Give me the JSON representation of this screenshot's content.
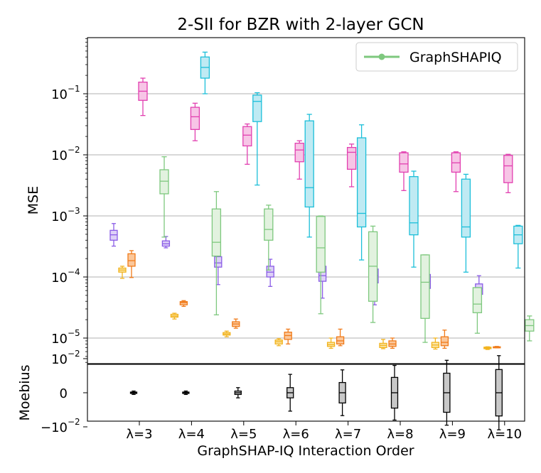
{
  "chart_data": [
    {
      "type": "box",
      "title": "2-SII for BZR with 2-layer GCN",
      "ylabel": "MSE",
      "yscale": "log",
      "ylim": [
        2.5e-06,
        1.0
      ],
      "y_ticks": [
        {
          "value": 0.1,
          "base": "10",
          "exp": "−1"
        },
        {
          "value": 0.01,
          "base": "10",
          "exp": "−2"
        },
        {
          "value": 0.001,
          "base": "10",
          "exp": "−3"
        },
        {
          "value": 0.0001,
          "base": "10",
          "exp": "−4"
        },
        {
          "value": 1e-05,
          "base": "10",
          "exp": "−5"
        }
      ],
      "grid": "y",
      "legend": {
        "position": "top-right",
        "entries": [
          {
            "label": "GraphSHAPIQ",
            "color": "#7ec87e"
          }
        ]
      },
      "categories": [
        "λ=3",
        "λ=4",
        "λ=5",
        "λ=6",
        "λ=7",
        "λ=8",
        "λ=9",
        "λ=10"
      ],
      "series": [
        {
          "name": "purple",
          "stroke": "#8a5ce6",
          "fill": "#ddd0f7",
          "boxes": [
            {
              "lo": 0.00032,
              "q1": 0.0004,
              "med": 0.00049,
              "q3": 0.00058,
              "hi": 0.00075
            },
            {
              "lo": 0.0003,
              "q1": 0.00032,
              "med": 0.00035,
              "q3": 0.00039,
              "hi": 0.00046
            },
            {
              "lo": 7.5e-05,
              "q1": 0.000145,
              "med": 0.00017,
              "q3": 0.000215,
              "hi": 0.00022
            },
            {
              "lo": 7e-05,
              "q1": 0.0001,
              "med": 0.00012,
              "q3": 0.00015,
              "hi": 0.000195
            },
            {
              "lo": 4.5e-05,
              "q1": 8.5e-05,
              "med": 0.000105,
              "q3": 0.00015,
              "hi": 0.0002
            },
            {
              "lo": 3.5e-05,
              "q1": 8e-05,
              "med": 0.000105,
              "q3": 0.000135,
              "hi": 0.00017
            },
            {
              "lo": 4.5e-05,
              "q1": 6.5e-05,
              "med": 8.5e-05,
              "q3": 0.00011,
              "hi": 0.000135
            },
            {
              "lo": 4e-05,
              "q1": 5.2e-05,
              "med": 6.5e-05,
              "q3": 7.7e-05,
              "hi": 0.000105
            }
          ]
        },
        {
          "name": "yellow",
          "stroke": "#f2b31e",
          "fill": "#fbe6a8",
          "boxes": [
            {
              "lo": 9.5e-05,
              "q1": 0.00012,
              "med": 0.00013,
              "q3": 0.00014,
              "hi": 0.00015
            },
            {
              "lo": 2.05e-05,
              "q1": 2.2e-05,
              "med": 2.3e-05,
              "q3": 2.45e-05,
              "hi": 2.55e-05
            },
            {
              "lo": 1.05e-05,
              "q1": 1.12e-05,
              "med": 1.17e-05,
              "q3": 1.23e-05,
              "hi": 1.3e-05
            },
            {
              "lo": 7.5e-06,
              "q1": 8e-06,
              "med": 8.7e-06,
              "q3": 9.3e-06,
              "hi": 9.8e-06
            },
            {
              "lo": 6.8e-06,
              "q1": 7.3e-06,
              "med": 7.8e-06,
              "q3": 8.5e-06,
              "hi": 1e-05
            },
            {
              "lo": 6.7e-06,
              "q1": 7e-06,
              "med": 7.6e-06,
              "q3": 8.2e-06,
              "hi": 9.5e-06
            },
            {
              "lo": 6.6e-06,
              "q1": 7e-06,
              "med": 7.7e-06,
              "q3": 8.5e-06,
              "hi": 1e-05
            },
            {
              "lo": 6.5e-06,
              "q1": 6.7e-06,
              "med": 6.9e-06,
              "q3": 7.1e-06,
              "hi": 7.2e-06
            }
          ]
        },
        {
          "name": "orange",
          "stroke": "#f07b1a",
          "fill": "#fbc79a",
          "boxes": [
            {
              "lo": 9.8e-05,
              "q1": 0.00015,
              "med": 0.000185,
              "q3": 0.00024,
              "hi": 0.00027
            },
            {
              "lo": 3.3e-05,
              "q1": 3.5e-05,
              "med": 3.8e-05,
              "q3": 3.95e-05,
              "hi": 4.1e-05
            },
            {
              "lo": 1.45e-05,
              "q1": 1.55e-05,
              "med": 1.7e-05,
              "q3": 1.85e-05,
              "hi": 2.05e-05
            },
            {
              "lo": 8e-06,
              "q1": 9.5e-06,
              "med": 1.1e-05,
              "q3": 1.25e-05,
              "hi": 1.4e-05
            },
            {
              "lo": 7.5e-06,
              "q1": 8e-06,
              "med": 9e-06,
              "q3": 1.05e-05,
              "hi": 1.4e-05
            },
            {
              "lo": 6.8e-06,
              "q1": 7.3e-06,
              "med": 8e-06,
              "q3": 9e-06,
              "hi": 1e-05
            },
            {
              "lo": 6.8e-06,
              "q1": 7.5e-06,
              "med": 8.5e-06,
              "q3": 1.05e-05,
              "hi": 1.35e-05
            },
            {
              "lo": 6.9e-06,
              "q1": 7e-06,
              "med": 7.1e-06,
              "q3": 7.2e-06,
              "hi": 7.3e-06
            }
          ]
        },
        {
          "name": "pink",
          "stroke": "#e23fb0",
          "fill": "#f7c5e6",
          "boxes": [
            {
              "lo": 0.044,
              "q1": 0.078,
              "med": 0.11,
              "q3": 0.155,
              "hi": 0.18
            },
            {
              "lo": 0.017,
              "q1": 0.026,
              "med": 0.042,
              "q3": 0.06,
              "hi": 0.07
            },
            {
              "lo": 0.007,
              "q1": 0.014,
              "med": 0.021,
              "q3": 0.029,
              "hi": 0.032
            },
            {
              "lo": 0.004,
              "q1": 0.0077,
              "med": 0.012,
              "q3": 0.0155,
              "hi": 0.017
            },
            {
              "lo": 0.003,
              "q1": 0.0058,
              "med": 0.011,
              "q3": 0.0132,
              "hi": 0.015
            },
            {
              "lo": 0.0026,
              "q1": 0.0052,
              "med": 0.0071,
              "q3": 0.0108,
              "hi": 0.0112
            },
            {
              "lo": 0.0025,
              "q1": 0.0052,
              "med": 0.0074,
              "q3": 0.0108,
              "hi": 0.0112
            },
            {
              "lo": 0.0024,
              "q1": 0.0035,
              "med": 0.0066,
              "q3": 0.0098,
              "hi": 0.0102
            }
          ]
        },
        {
          "name": "cyan",
          "stroke": "#1cbfd9",
          "fill": "#bfeaf3",
          "boxes": [
            {
              "lo": null,
              "q1": null,
              "med": null,
              "q3": null,
              "hi": null
            },
            {
              "lo": 0.1,
              "q1": 0.18,
              "med": 0.27,
              "q3": 0.4,
              "hi": 0.48
            },
            {
              "lo": 0.0032,
              "q1": 0.035,
              "med": 0.075,
              "q3": 0.095,
              "hi": 0.104
            },
            {
              "lo": 0.00045,
              "q1": 0.0014,
              "med": 0.0029,
              "q3": 0.036,
              "hi": 0.046
            },
            {
              "lo": 0.00019,
              "q1": 0.00066,
              "med": 0.0011,
              "q3": 0.019,
              "hi": 0.031
            },
            {
              "lo": 0.000145,
              "q1": 0.00049,
              "med": 0.00077,
              "q3": 0.0044,
              "hi": 0.0054
            },
            {
              "lo": 0.00012,
              "q1": 0.00045,
              "med": 0.00066,
              "q3": 0.004,
              "hi": 0.0048
            },
            {
              "lo": 0.00014,
              "q1": 0.00035,
              "med": 0.00049,
              "q3": 0.00068,
              "hi": 0.0007
            }
          ]
        },
        {
          "name": "GraphSHAPIQ",
          "stroke": "#7ec87e",
          "fill": "#e2f2df",
          "boxes": [
            {
              "lo": 0.00045,
              "q1": 0.0023,
              "med": 0.0037,
              "q3": 0.0057,
              "hi": 0.0093
            },
            {
              "lo": 2.4e-05,
              "q1": 0.00022,
              "med": 0.00037,
              "q3": 0.0013,
              "hi": 0.0025
            },
            {
              "lo": 0.00013,
              "q1": 0.0004,
              "med": 0.0006,
              "q3": 0.0013,
              "hi": 0.0015
            },
            {
              "lo": 2.5e-05,
              "q1": 0.00012,
              "med": 0.0003,
              "q3": 0.00098,
              "hi": 0.001
            },
            {
              "lo": 1.8e-05,
              "q1": 4e-05,
              "med": 0.00015,
              "q3": 0.00055,
              "hi": 0.00068
            },
            {
              "lo": 8.5e-06,
              "q1": 2.1e-05,
              "med": 8.2e-05,
              "q3": 0.00023,
              "hi": 0.00023
            },
            {
              "lo": 1.2e-05,
              "q1": 2.6e-05,
              "med": 3.6e-05,
              "q3": 6.7e-05,
              "hi": 6.7e-05
            },
            {
              "lo": 9e-06,
              "q1": 1.3e-05,
              "med": 1.6e-05,
              "q3": 2e-05,
              "hi": 2.3e-05
            }
          ]
        }
      ]
    },
    {
      "type": "box",
      "ylabel": "Moebius",
      "yscale": "symlog",
      "y_ticks": [
        {
          "value": 0.01,
          "base": "10",
          "exp": "−2",
          "prefix": ""
        },
        {
          "value": 0,
          "base": "0",
          "exp": "",
          "prefix": ""
        },
        {
          "value": -0.01,
          "base": "10",
          "exp": "−2",
          "prefix": "−"
        }
      ],
      "xlabel": "GraphSHAP-IQ Interaction Order",
      "categories": [
        "λ=3",
        "λ=4",
        "λ=5",
        "λ=6",
        "λ=7",
        "λ=8",
        "λ=9",
        "λ=10"
      ],
      "series": [
        {
          "name": "Moebius",
          "stroke": "#000000",
          "fill": "#c8c8c8",
          "boxes": [
            {
              "lo": -0.0001,
              "q1": -4e-05,
              "med": 0,
              "q3": 4e-05,
              "hi": 0.0001
            },
            {
              "lo": -0.0001,
              "q1": -4e-05,
              "med": 0,
              "q3": 4e-05,
              "hi": 0.0001
            },
            {
              "lo": -0.0003,
              "q1": -0.0001,
              "med": 0,
              "q3": 0.0001,
              "hi": 0.0003
            },
            {
              "lo": -0.0012,
              "q1": -0.0003,
              "med": 0,
              "q3": 0.0003,
              "hi": 0.0012
            },
            {
              "lo": -0.0022,
              "q1": -0.0006,
              "med": 0,
              "q3": 0.0006,
              "hi": 0.0022
            },
            {
              "lo": -0.004,
              "q1": -0.0009,
              "med": 0,
              "q3": 0.0009,
              "hi": 0.004
            },
            {
              "lo": -0.008,
              "q1": -0.0014,
              "med": 0,
              "q3": 0.0014,
              "hi": 0.008
            },
            {
              "lo": -0.015,
              "q1": -0.0023,
              "med": 0,
              "q3": 0.0023,
              "hi": 0.015
            }
          ]
        }
      ]
    }
  ]
}
